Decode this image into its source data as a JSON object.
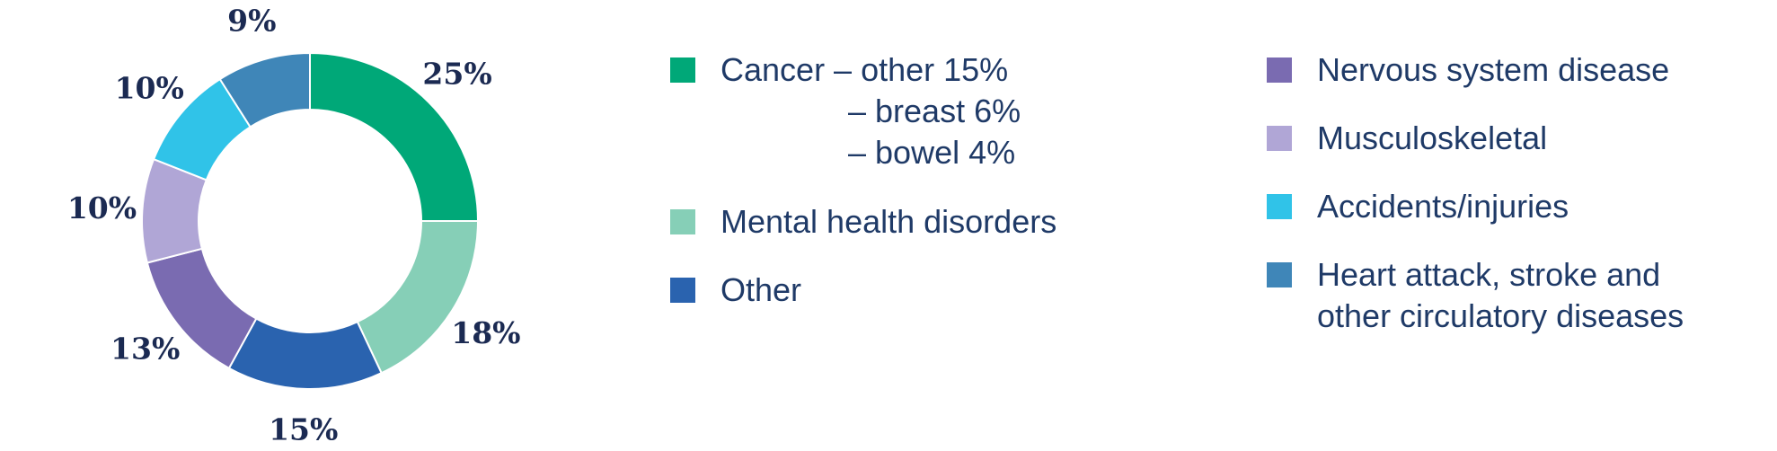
{
  "chart_data": {
    "type": "pie",
    "donut": true,
    "unit": "%",
    "segments": [
      {
        "label": "Cancer",
        "value": 25,
        "display": "25%",
        "color": "#00a878"
      },
      {
        "label": "Mental health disorders",
        "value": 18,
        "display": "18%",
        "color": "#86cfb7"
      },
      {
        "label": "Other",
        "value": 15,
        "display": "15%",
        "color": "#2a63af"
      },
      {
        "label": "Nervous system disease",
        "value": 13,
        "display": "13%",
        "color": "#7a6bb1"
      },
      {
        "label": "Musculoskeletal",
        "value": 10,
        "display": "10%",
        "color": "#b0a6d6"
      },
      {
        "label": "Accidents/injuries",
        "value": 10,
        "display": "10%",
        "color": "#30c3e8"
      },
      {
        "label": "Heart attack, stroke and other circulatory diseases",
        "value": 9,
        "display": "9%",
        "color": "#3f86b8"
      }
    ],
    "cancer_breakdown": [
      {
        "label": "other",
        "value": 15
      },
      {
        "label": "breast",
        "value": 6
      },
      {
        "label": "bowel",
        "value": 4
      }
    ]
  },
  "legend": {
    "cancer": {
      "lines": [
        "Cancer – other 15%",
        "– breast 6%",
        "– bowel 4%"
      ],
      "color": "#00a878"
    },
    "mental": {
      "label": "Mental health disorders",
      "color": "#86cfb7"
    },
    "other": {
      "label": "Other",
      "color": "#2a63af"
    },
    "nervous": {
      "label": "Nervous system disease",
      "color": "#7a6bb1"
    },
    "musculo": {
      "label": "Musculoskeletal",
      "color": "#b0a6d6"
    },
    "accidents": {
      "label": "Accidents/injuries",
      "color": "#30c3e8"
    },
    "heart": {
      "lines": [
        "Heart attack, stroke and",
        "other circulatory diseases"
      ],
      "color": "#3f86b8"
    }
  }
}
